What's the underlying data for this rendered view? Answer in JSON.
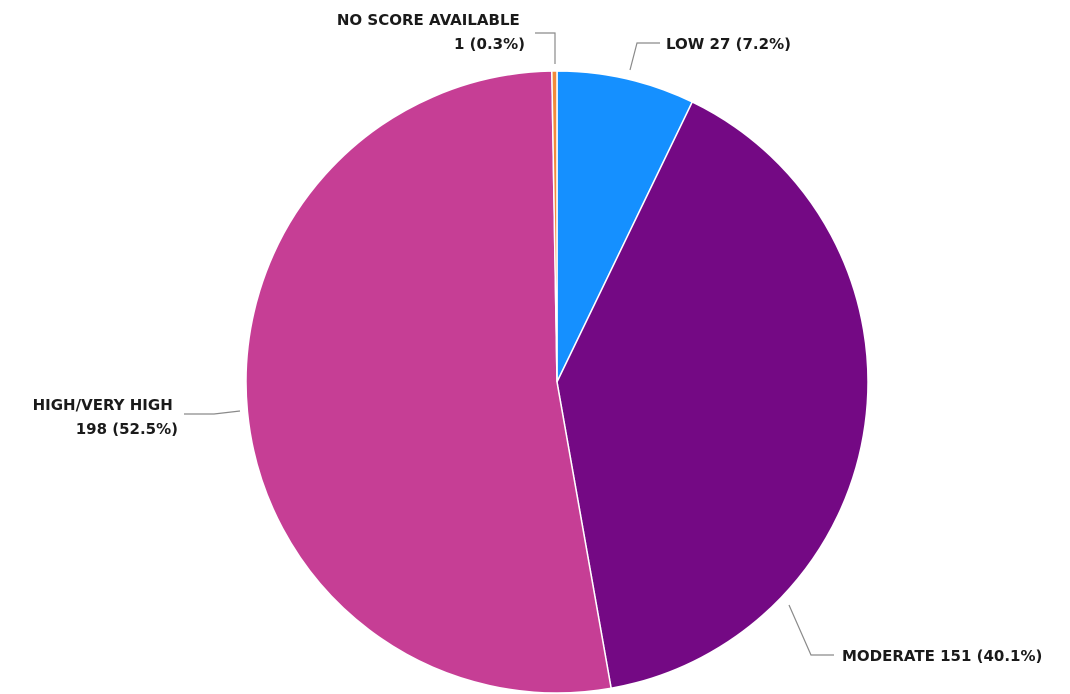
{
  "chart_data": {
    "type": "pie",
    "start_angle_deg": 0,
    "direction": "clockwise",
    "slices": [
      {
        "label": "LOW",
        "value": 27,
        "percent": 7.2,
        "color": "#1590FF",
        "label_lines": [
          "LOW 27 (7.2%)"
        ]
      },
      {
        "label": "MODERATE",
        "value": 151,
        "percent": 40.1,
        "color": "#740984",
        "label_lines": [
          "MODERATE 151 (40.1%)"
        ]
      },
      {
        "label": "HIGH/VERY HIGH",
        "value": 198,
        "percent": 52.5,
        "color": "#C63E95",
        "label_lines": [
          "HIGH/VERY HIGH",
          "198 (52.5%)"
        ]
      },
      {
        "label": "NO SCORE AVAILABLE",
        "value": 1,
        "percent": 0.3,
        "color": "#F28A3C",
        "label_lines": [
          "NO SCORE AVAILABLE",
          "1 (0.3%)"
        ]
      }
    ]
  }
}
